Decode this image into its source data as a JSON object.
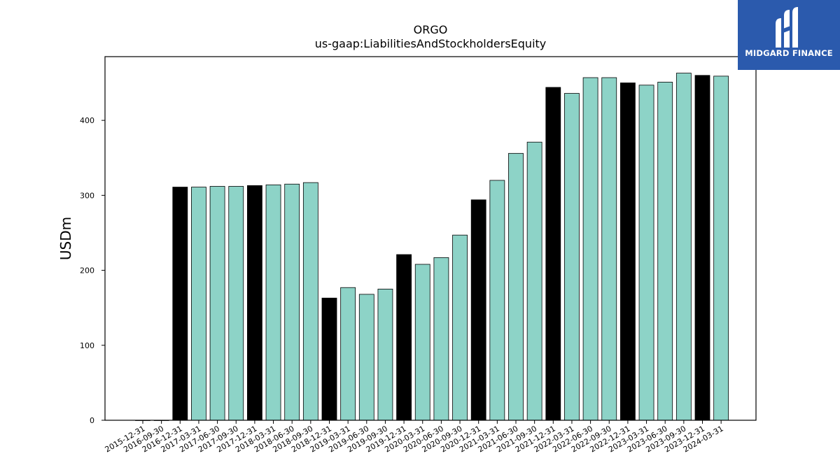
{
  "chart_data": {
    "type": "bar",
    "title": "ORGO",
    "subtitle": "us-gaap:LiabilitiesAndStockholdersEquity",
    "ylabel": "USDm",
    "xlabel": "",
    "ylim": [
      0,
      485
    ],
    "yticks": [
      0,
      100,
      200,
      300,
      400
    ],
    "grid": false,
    "colors": {
      "quarter": "#8dd3c7",
      "year_end": "#000000",
      "edge": "#000000"
    },
    "categories": [
      "2015-12-31",
      "2016-09-30",
      "2016-12-31",
      "2017-03-31",
      "2017-06-30",
      "2017-09-30",
      "2017-12-31",
      "2018-03-31",
      "2018-06-30",
      "2018-09-30",
      "2018-12-31",
      "2019-03-31",
      "2019-06-30",
      "2019-09-30",
      "2019-12-31",
      "2020-03-31",
      "2020-06-30",
      "2020-09-30",
      "2020-12-31",
      "2021-03-31",
      "2021-06-30",
      "2021-09-30",
      "2021-12-31",
      "2022-03-31",
      "2022-06-30",
      "2022-09-30",
      "2022-12-31",
      "2023-03-31",
      "2023-06-30",
      "2023-09-30",
      "2023-12-31",
      "2024-03-31"
    ],
    "values": [
      0,
      0,
      311,
      311,
      312,
      312,
      313,
      314,
      315,
      317,
      163,
      177,
      168,
      175,
      221,
      208,
      217,
      247,
      294,
      320,
      356,
      371,
      444,
      436,
      457,
      457,
      450,
      447,
      451,
      463,
      460,
      459
    ],
    "year_end": [
      true,
      false,
      true,
      false,
      false,
      false,
      true,
      false,
      false,
      false,
      true,
      false,
      false,
      false,
      true,
      false,
      false,
      false,
      true,
      false,
      false,
      false,
      true,
      false,
      false,
      false,
      true,
      false,
      false,
      false,
      true,
      false
    ]
  },
  "logo": {
    "text": "MIDGARD FINANCE",
    "icon": "midgard-logo-icon",
    "background": "#2b5aad"
  }
}
